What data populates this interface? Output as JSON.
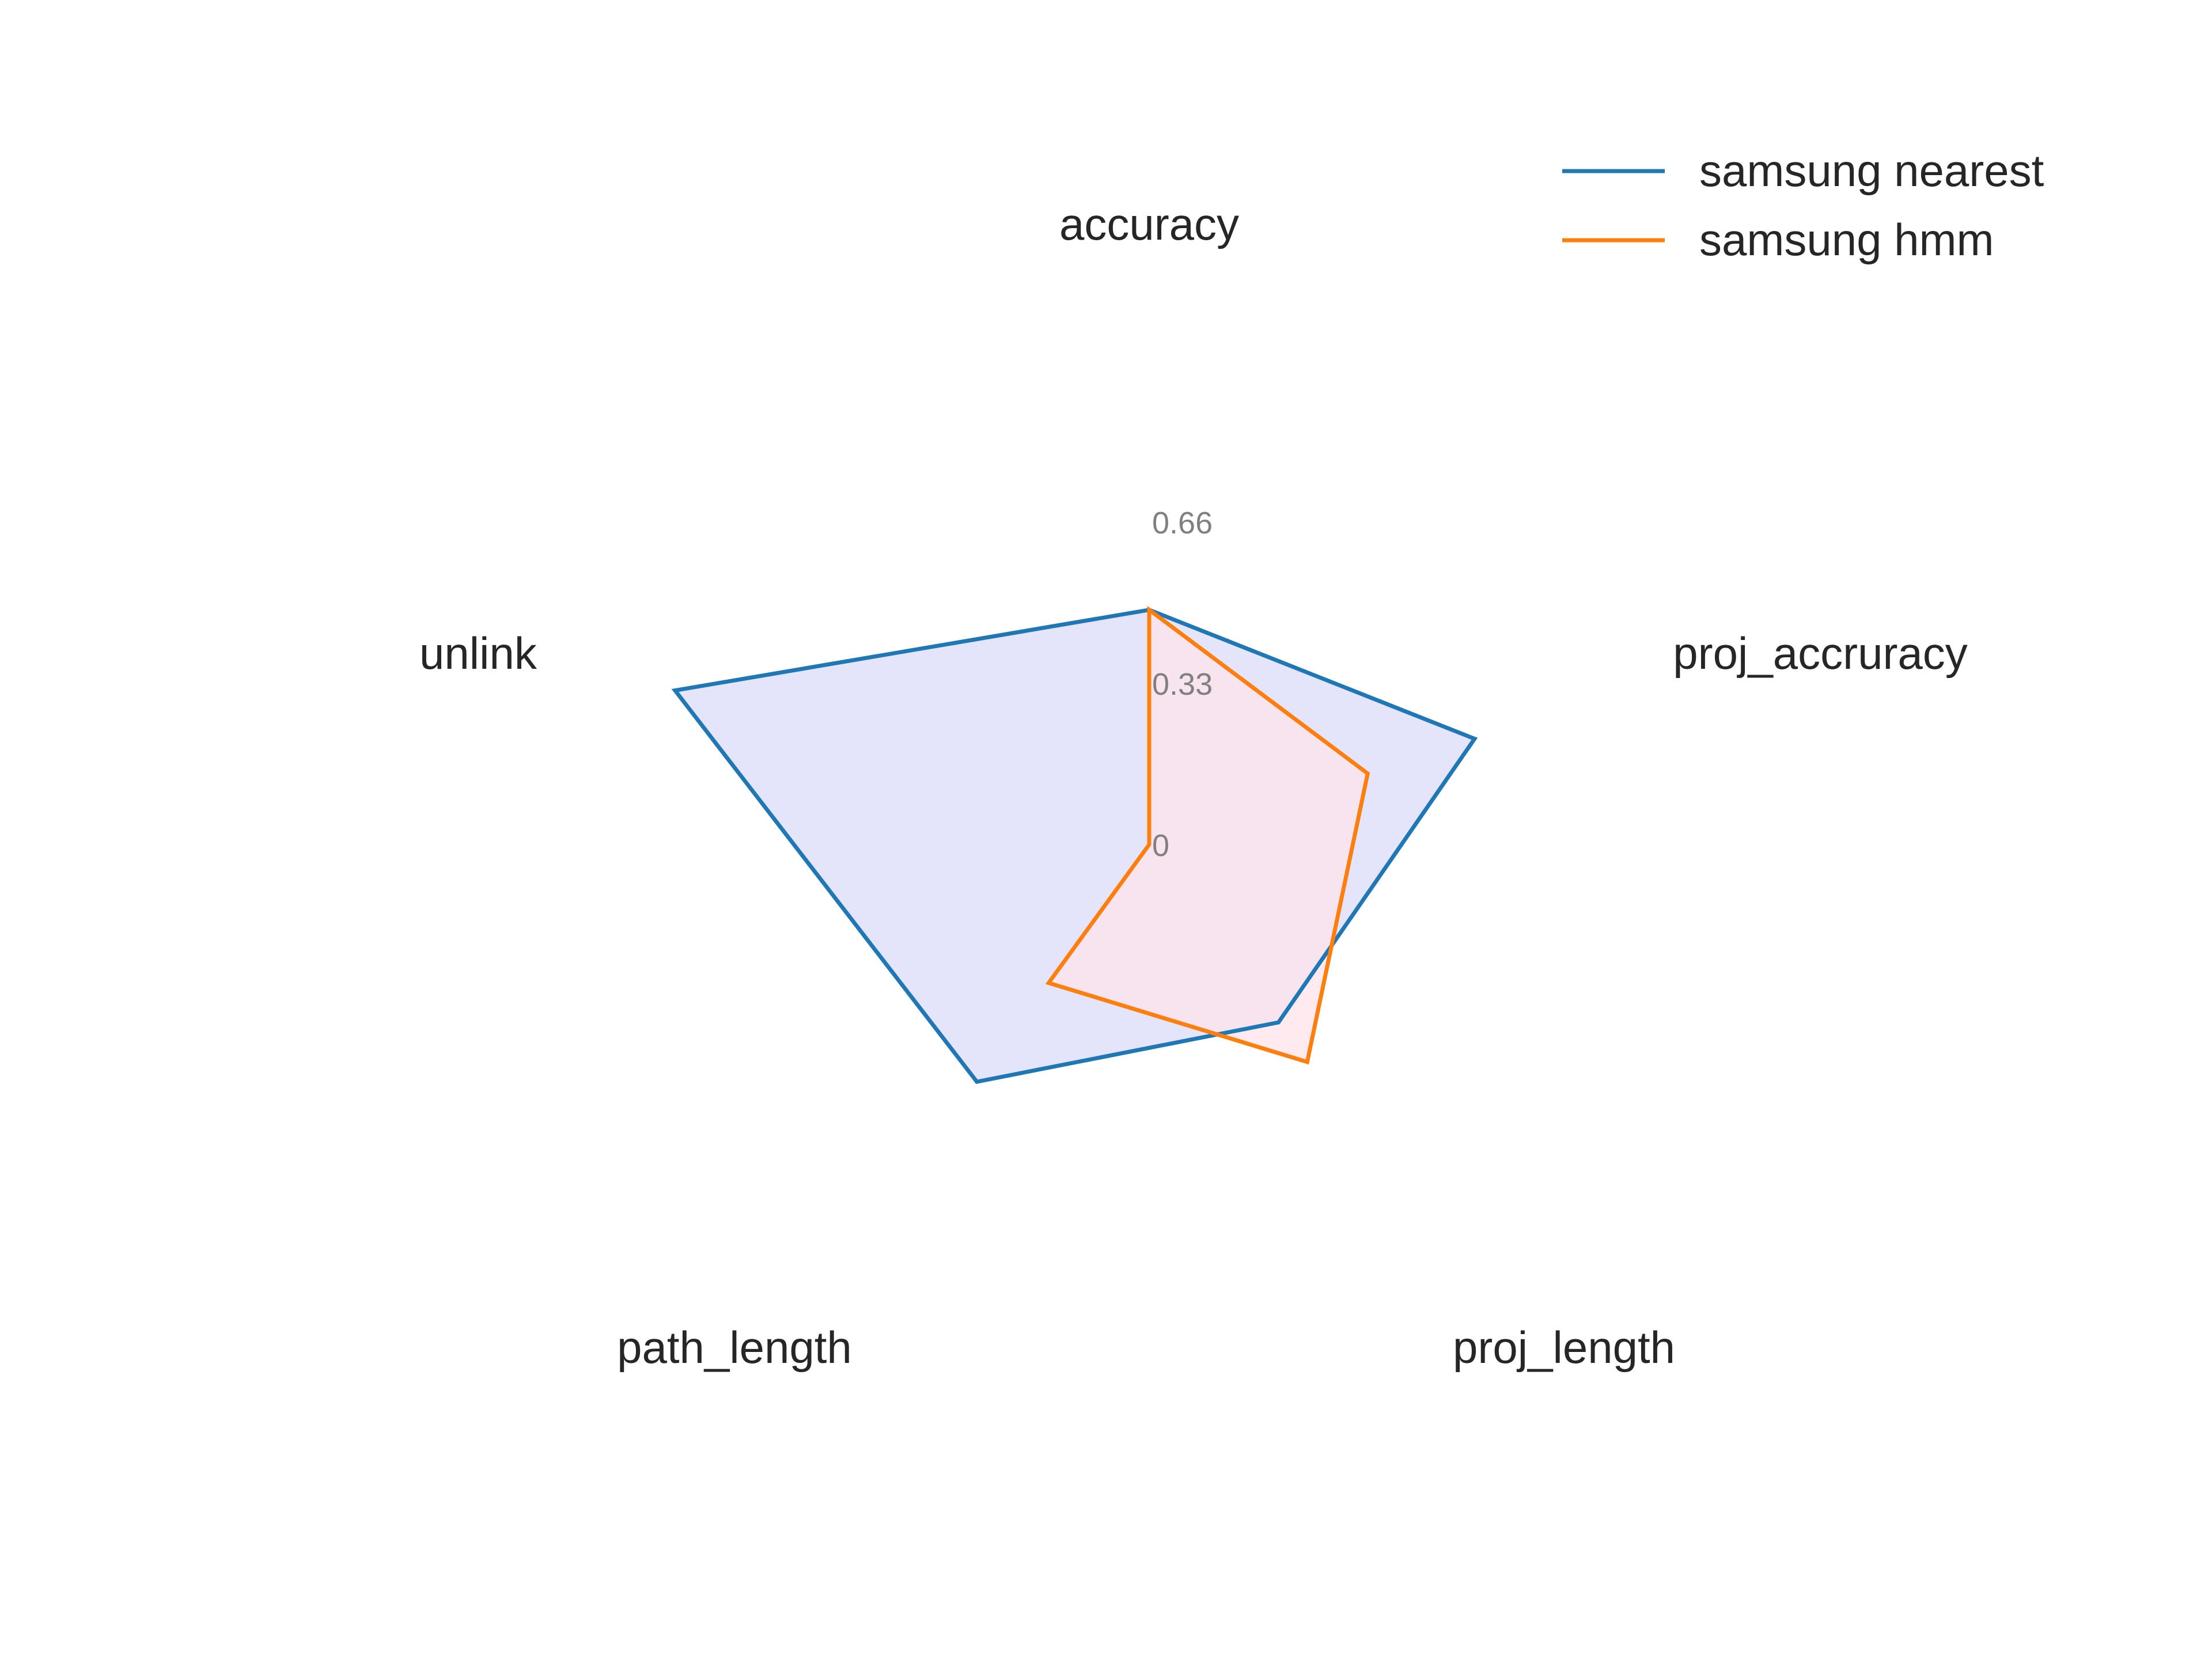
{
  "chart_data": {
    "type": "radar",
    "axes": [
      "accuracy",
      "proj_accruracy",
      "proj_length",
      "path_length",
      "unlink"
    ],
    "rlim": [
      0,
      0.66
    ],
    "r_ticks": [
      {
        "value": 0,
        "label": "0"
      },
      {
        "value": 0.33,
        "label": "0.33"
      },
      {
        "value": 0.66,
        "label": "0.66"
      }
    ],
    "grid": false,
    "legend_position": "top-right",
    "series": [
      {
        "name": "samsung nearest",
        "values": [
          0.48,
          0.7,
          0.45,
          0.6,
          1.02
        ],
        "line_color": "#1f77b4",
        "fill_color": "#e4e4fb"
      },
      {
        "name": "samsung hmm",
        "values": [
          0.48,
          0.47,
          0.55,
          0.35,
          0.0
        ],
        "line_color": "#ff7f0e",
        "fill_color": "#ffe4e9"
      }
    ]
  }
}
